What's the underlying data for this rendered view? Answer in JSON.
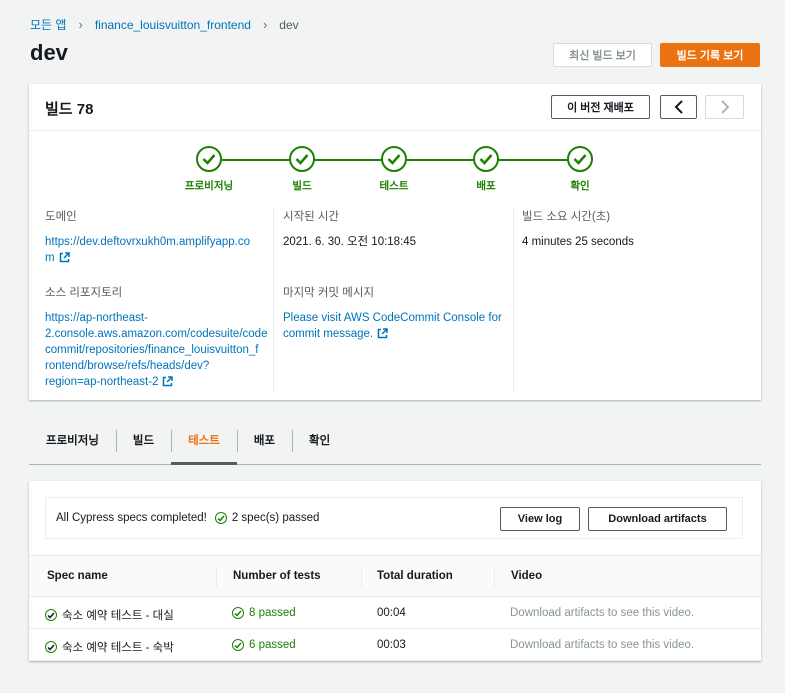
{
  "breadcrumb": {
    "root": "모든 앱",
    "app": "finance_louisvuitton_frontend",
    "current": "dev"
  },
  "page_title": "dev",
  "header_buttons": {
    "latest": "최신 빌드 보기",
    "history": "빌드 기록 보기"
  },
  "build": {
    "title": "빌드 78",
    "redeploy": "이 버전 재배포",
    "prev": "❮",
    "next": "❯",
    "steps": [
      "프로비저닝",
      "빌드",
      "테스트",
      "배포",
      "확인"
    ],
    "domain_label": "도메인",
    "domain_line1": "https://dev.deftovrxukh0m.amplifyapp.co",
    "domain_line2": "m",
    "repo_label": "소스 리포지토리",
    "repo_lines": [
      "https://ap-northeast-",
      "2.console.aws.amazon.com/codesuite/code",
      "commit/repositories/finance_louisvuitton_f",
      "rontend/browse/refs/heads/dev?",
      "region=ap-northeast-2"
    ],
    "started_label": "시작된 시간",
    "started_value": "2021. 6. 30. 오전 10:18:45",
    "commit_label": "마지막 커밋 메시지",
    "commit_line1": "Please visit AWS CodeCommit Console for",
    "commit_line2": "commit message.",
    "duration_label": "빌드 소요 시간(초)",
    "duration_value": "4 minutes 25 seconds"
  },
  "tabs": [
    "프로비저닝",
    "빌드",
    "테스트",
    "배포",
    "확인"
  ],
  "active_tab": "테스트",
  "tests": {
    "summary": "All Cypress specs completed!",
    "passed_summary": "2 spec(s) passed",
    "view_log": "View log",
    "download": "Download artifacts",
    "columns": [
      "Spec name",
      "Number of tests",
      "Total duration",
      "Video"
    ],
    "rows": [
      {
        "spec": "숙소 예약 테스트 - 대실",
        "tests": "8 passed",
        "duration": "00:04",
        "video": "Download artifacts to see this video."
      },
      {
        "spec": "숙소 예약 테스트 - 숙박",
        "tests": "6 passed",
        "duration": "00:03",
        "video": "Download artifacts to see this video."
      }
    ]
  },
  "colors": {
    "success": "#1d8102",
    "accent": "#ec7211",
    "link": "#0073bb"
  }
}
